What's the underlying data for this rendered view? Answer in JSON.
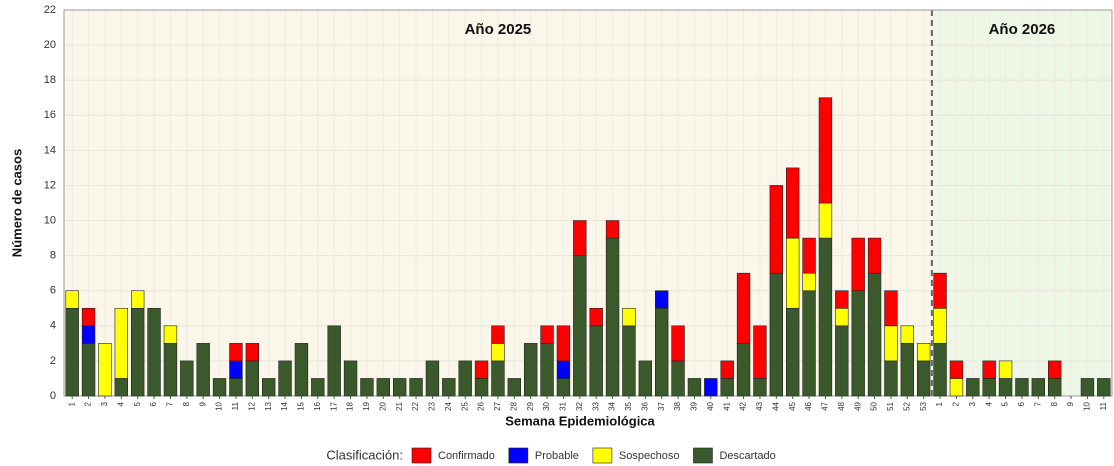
{
  "chart_data": {
    "type": "stacked_bar",
    "x_label": "Semana Epidemiológica",
    "y_label": "Número de casos",
    "annotations": [
      "Año 2025",
      "Año 2026"
    ],
    "legend_title": "Clasificación:",
    "categories": [
      "1",
      "2",
      "3",
      "4",
      "5",
      "6",
      "7",
      "8",
      "9",
      "10",
      "11",
      "12",
      "13",
      "14",
      "15",
      "16",
      "17",
      "18",
      "19",
      "20",
      "21",
      "22",
      "23",
      "24",
      "25",
      "26",
      "27",
      "28",
      "29",
      "30",
      "31",
      "32",
      "33",
      "34",
      "35",
      "36",
      "37",
      "38",
      "39",
      "40",
      "41",
      "42",
      "43",
      "44",
      "45",
      "46",
      "47",
      "48",
      "49",
      "50",
      "51",
      "52",
      "53",
      "1",
      "2",
      "3",
      "4",
      "5",
      "6",
      "7",
      "8",
      "9",
      "10",
      "11"
    ],
    "series": [
      {
        "name": "Confirmado",
        "color": "#ff0000",
        "values": [
          0,
          1,
          0,
          0,
          0,
          0,
          0,
          0,
          0,
          0,
          1,
          1,
          0,
          0,
          0,
          0,
          0,
          0,
          0,
          0,
          0,
          0,
          0,
          0,
          0,
          1,
          1,
          0,
          0,
          1,
          2,
          2,
          1,
          1,
          0,
          0,
          0,
          2,
          0,
          0,
          1,
          4,
          3,
          5,
          4,
          2,
          6,
          1,
          3,
          2,
          2,
          0,
          0,
          2,
          1,
          0,
          1,
          0,
          0,
          0,
          1,
          0,
          0,
          0
        ]
      },
      {
        "name": "Probable",
        "color": "#0000ff",
        "values": [
          0,
          1,
          0,
          0,
          0,
          0,
          0,
          0,
          0,
          0,
          1,
          0,
          0,
          0,
          0,
          0,
          0,
          0,
          0,
          0,
          0,
          0,
          0,
          0,
          0,
          0,
          0,
          0,
          0,
          0,
          1,
          0,
          0,
          0,
          0,
          0,
          1,
          0,
          0,
          1,
          0,
          0,
          0,
          0,
          0,
          0,
          0,
          0,
          0,
          0,
          0,
          0,
          0,
          0,
          0,
          0,
          0,
          0,
          0,
          0,
          0,
          0,
          0,
          0
        ]
      },
      {
        "name": "Sospechoso",
        "color": "#ffff00",
        "values": [
          1,
          0,
          3,
          4,
          1,
          0,
          1,
          0,
          0,
          0,
          0,
          0,
          0,
          0,
          0,
          0,
          0,
          0,
          0,
          0,
          0,
          0,
          0,
          0,
          0,
          0,
          1,
          0,
          0,
          0,
          0,
          0,
          0,
          0,
          1,
          0,
          0,
          0,
          0,
          0,
          0,
          0,
          0,
          0,
          4,
          1,
          2,
          1,
          0,
          0,
          2,
          1,
          1,
          2,
          1,
          0,
          0,
          1,
          0,
          0,
          0,
          0,
          0,
          0
        ]
      },
      {
        "name": "Descartado",
        "color": "#3b5a2c",
        "values": [
          5,
          3,
          0,
          1,
          5,
          5,
          3,
          2,
          3,
          1,
          1,
          2,
          1,
          2,
          3,
          1,
          4,
          2,
          1,
          1,
          1,
          1,
          2,
          1,
          2,
          1,
          2,
          1,
          3,
          3,
          1,
          8,
          4,
          9,
          4,
          2,
          5,
          2,
          1,
          0,
          1,
          3,
          1,
          7,
          5,
          6,
          9,
          4,
          6,
          7,
          2,
          3,
          2,
          3,
          0,
          1,
          1,
          1,
          1,
          1,
          1,
          0,
          1,
          1
        ]
      }
    ],
    "ylim": [
      0,
      22
    ],
    "yticks": [
      0,
      2,
      4,
      6,
      8,
      10,
      12,
      14,
      16,
      18,
      20,
      22
    ],
    "grid": true
  }
}
